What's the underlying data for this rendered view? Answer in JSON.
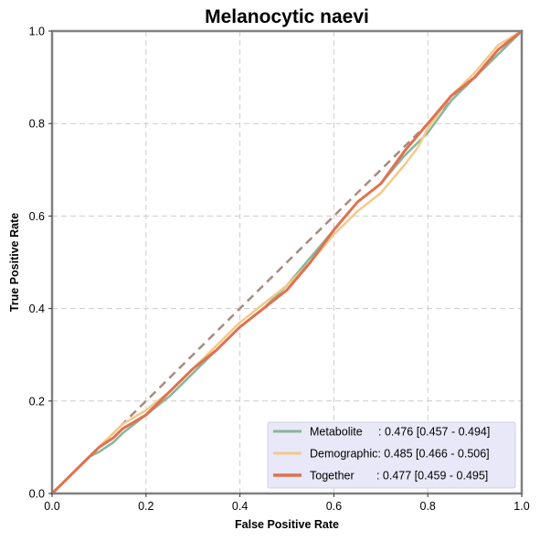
{
  "chart_data": {
    "type": "line",
    "title": "Melanocytic naevi",
    "xlabel": "False Positive Rate",
    "ylabel": "True Positive Rate",
    "xlim": [
      0,
      1
    ],
    "ylim": [
      0,
      1
    ],
    "xticks": [
      "0.0",
      "0.2",
      "0.4",
      "0.6",
      "0.8",
      "1.0"
    ],
    "yticks": [
      "0.0",
      "0.2",
      "0.4",
      "0.6",
      "0.8",
      "1.0"
    ],
    "grid": true,
    "legend_position": "bottom-right",
    "diagonal": {
      "x": [
        0,
        1
      ],
      "y": [
        0,
        1
      ],
      "color": "#a98a80"
    },
    "series": [
      {
        "name": "Metabolite",
        "label": "Metabolite     : 0.476 [0.457 - 0.494]",
        "color": "#86b69a",
        "width": 2.5,
        "x": [
          0,
          0.02,
          0.05,
          0.08,
          0.1,
          0.13,
          0.15,
          0.2,
          0.25,
          0.3,
          0.35,
          0.4,
          0.45,
          0.5,
          0.55,
          0.6,
          0.65,
          0.7,
          0.75,
          0.8,
          0.85,
          0.9,
          0.95,
          1.0
        ],
        "y": [
          0,
          0.02,
          0.05,
          0.08,
          0.09,
          0.11,
          0.13,
          0.17,
          0.21,
          0.26,
          0.31,
          0.36,
          0.4,
          0.45,
          0.51,
          0.57,
          0.63,
          0.67,
          0.73,
          0.78,
          0.85,
          0.9,
          0.95,
          1.0
        ]
      },
      {
        "name": "Demographic",
        "label": "Demographic: 0.485 [0.466 - 0.506]",
        "color": "#f3c98a",
        "width": 2.5,
        "x": [
          0,
          0.02,
          0.05,
          0.08,
          0.1,
          0.13,
          0.15,
          0.2,
          0.25,
          0.3,
          0.35,
          0.4,
          0.45,
          0.5,
          0.55,
          0.6,
          0.65,
          0.7,
          0.75,
          0.78,
          0.8,
          0.85,
          0.9,
          0.95,
          1.0
        ],
        "y": [
          0,
          0.02,
          0.05,
          0.08,
          0.1,
          0.13,
          0.15,
          0.18,
          0.22,
          0.27,
          0.32,
          0.37,
          0.41,
          0.45,
          0.5,
          0.56,
          0.61,
          0.65,
          0.71,
          0.75,
          0.79,
          0.86,
          0.91,
          0.97,
          1.0
        ]
      },
      {
        "name": "Together",
        "label": "Together       : 0.477 [0.459 - 0.495]",
        "color": "#e0714f",
        "width": 3,
        "x": [
          0,
          0.02,
          0.05,
          0.08,
          0.1,
          0.13,
          0.15,
          0.2,
          0.25,
          0.3,
          0.35,
          0.4,
          0.45,
          0.5,
          0.55,
          0.6,
          0.65,
          0.7,
          0.75,
          0.8,
          0.85,
          0.9,
          0.95,
          1.0
        ],
        "y": [
          0,
          0.02,
          0.05,
          0.08,
          0.1,
          0.12,
          0.14,
          0.17,
          0.22,
          0.27,
          0.31,
          0.36,
          0.4,
          0.44,
          0.5,
          0.57,
          0.63,
          0.67,
          0.74,
          0.8,
          0.86,
          0.9,
          0.96,
          1.0
        ]
      }
    ]
  }
}
